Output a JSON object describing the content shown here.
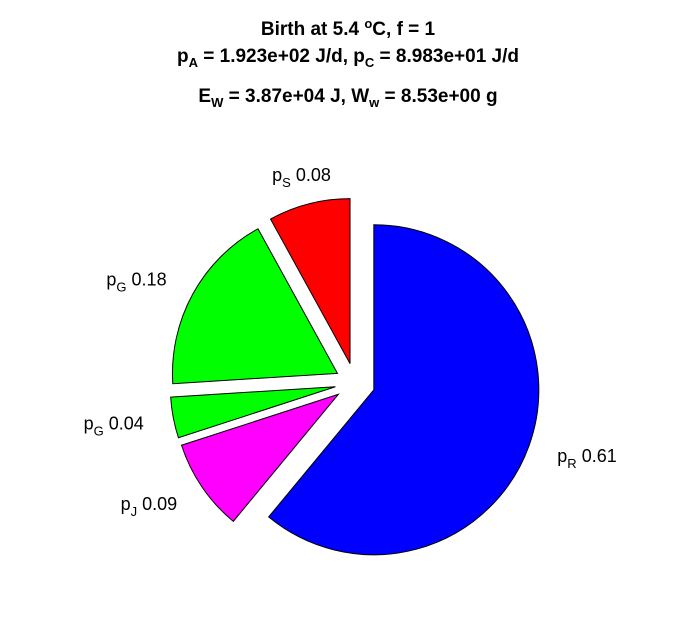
{
  "title": {
    "line1": {
      "a": "Birth at 5.4 ",
      "sup": "o",
      "b": "C, f = 1"
    },
    "line2": {
      "a": "p",
      "sub1": "A",
      "b": " = 1.923e+02 J/d, p",
      "sub2": "C",
      "c": " = 8.983e+01 J/d"
    },
    "line3": {
      "a": "E",
      "sub1": "W",
      "b": " = 3.87e+04 J, W",
      "sub2": "w",
      "c": " = 8.53e+00 g"
    }
  },
  "chart_data": {
    "type": "pie",
    "exploded": true,
    "slices": [
      {
        "base": "p",
        "sub": "R",
        "value": "0.61",
        "fraction": 0.61,
        "color": "#0000ff"
      },
      {
        "base": "p",
        "sub": "J",
        "value": "0.09",
        "fraction": 0.09,
        "color": "#ff00ff"
      },
      {
        "base": "p",
        "sub": "G",
        "value": "0.04",
        "fraction": 0.04,
        "color": "#00ff00"
      },
      {
        "base": "p",
        "sub": "G",
        "value": "0.18",
        "fraction": 0.18,
        "color": "#00ff00"
      },
      {
        "base": "p",
        "sub": "S",
        "value": "0.08",
        "fraction": 0.08,
        "color": "#ff0000"
      }
    ]
  }
}
